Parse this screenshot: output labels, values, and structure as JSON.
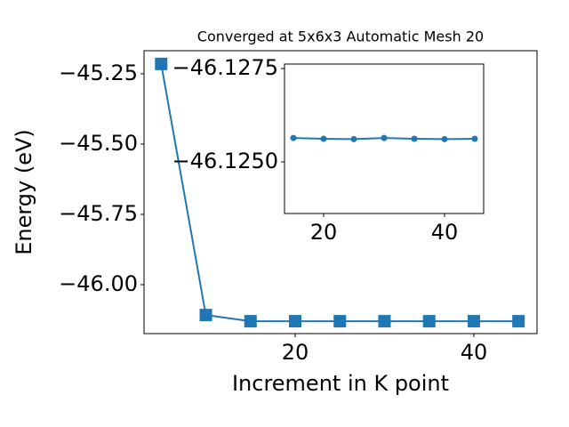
{
  "chart_data": [
    {
      "type": "line",
      "title": "Converged at 5x6x3 Automatic Mesh 20",
      "xlabel": "Increment in K point",
      "ylabel": "Energy (eV)",
      "x": [
        5,
        10,
        15,
        20,
        25,
        30,
        35,
        40,
        45
      ],
      "values": [
        -45.215,
        -46.108,
        -46.13,
        -46.13,
        -46.13,
        -46.13,
        -46.13,
        -46.13,
        -46.13
      ],
      "color": "#1f77b4",
      "marker": "square",
      "xlim": [
        3.08,
        47.07
      ],
      "xticks": [
        20,
        40
      ],
      "ylim": [
        -46.174,
        -45.168
      ],
      "yticks": [
        {
          "value": -46.0,
          "label": "−46.00"
        },
        {
          "value": -45.75,
          "label": "−45.75"
        },
        {
          "value": -45.5,
          "label": "−45.50"
        },
        {
          "value": -45.25,
          "label": "−45.25"
        }
      ]
    },
    {
      "type": "line",
      "x": [
        15,
        20,
        25,
        30,
        35,
        40,
        45
      ],
      "values": [
        -46.12564,
        -46.12562,
        -46.12561,
        -46.12564,
        -46.12562,
        -46.12561,
        -46.12562
      ],
      "color": "#1f77b4",
      "marker": "circle",
      "xlim": [
        13.53,
        46.47
      ],
      "xticks": [
        20,
        40
      ],
      "ylim": [
        -46.12362,
        -46.12762
      ],
      "yticks": [
        {
          "value": -46.125,
          "label": "−46.1250"
        },
        {
          "value": -46.1275,
          "label": "−46.1275"
        }
      ]
    }
  ]
}
